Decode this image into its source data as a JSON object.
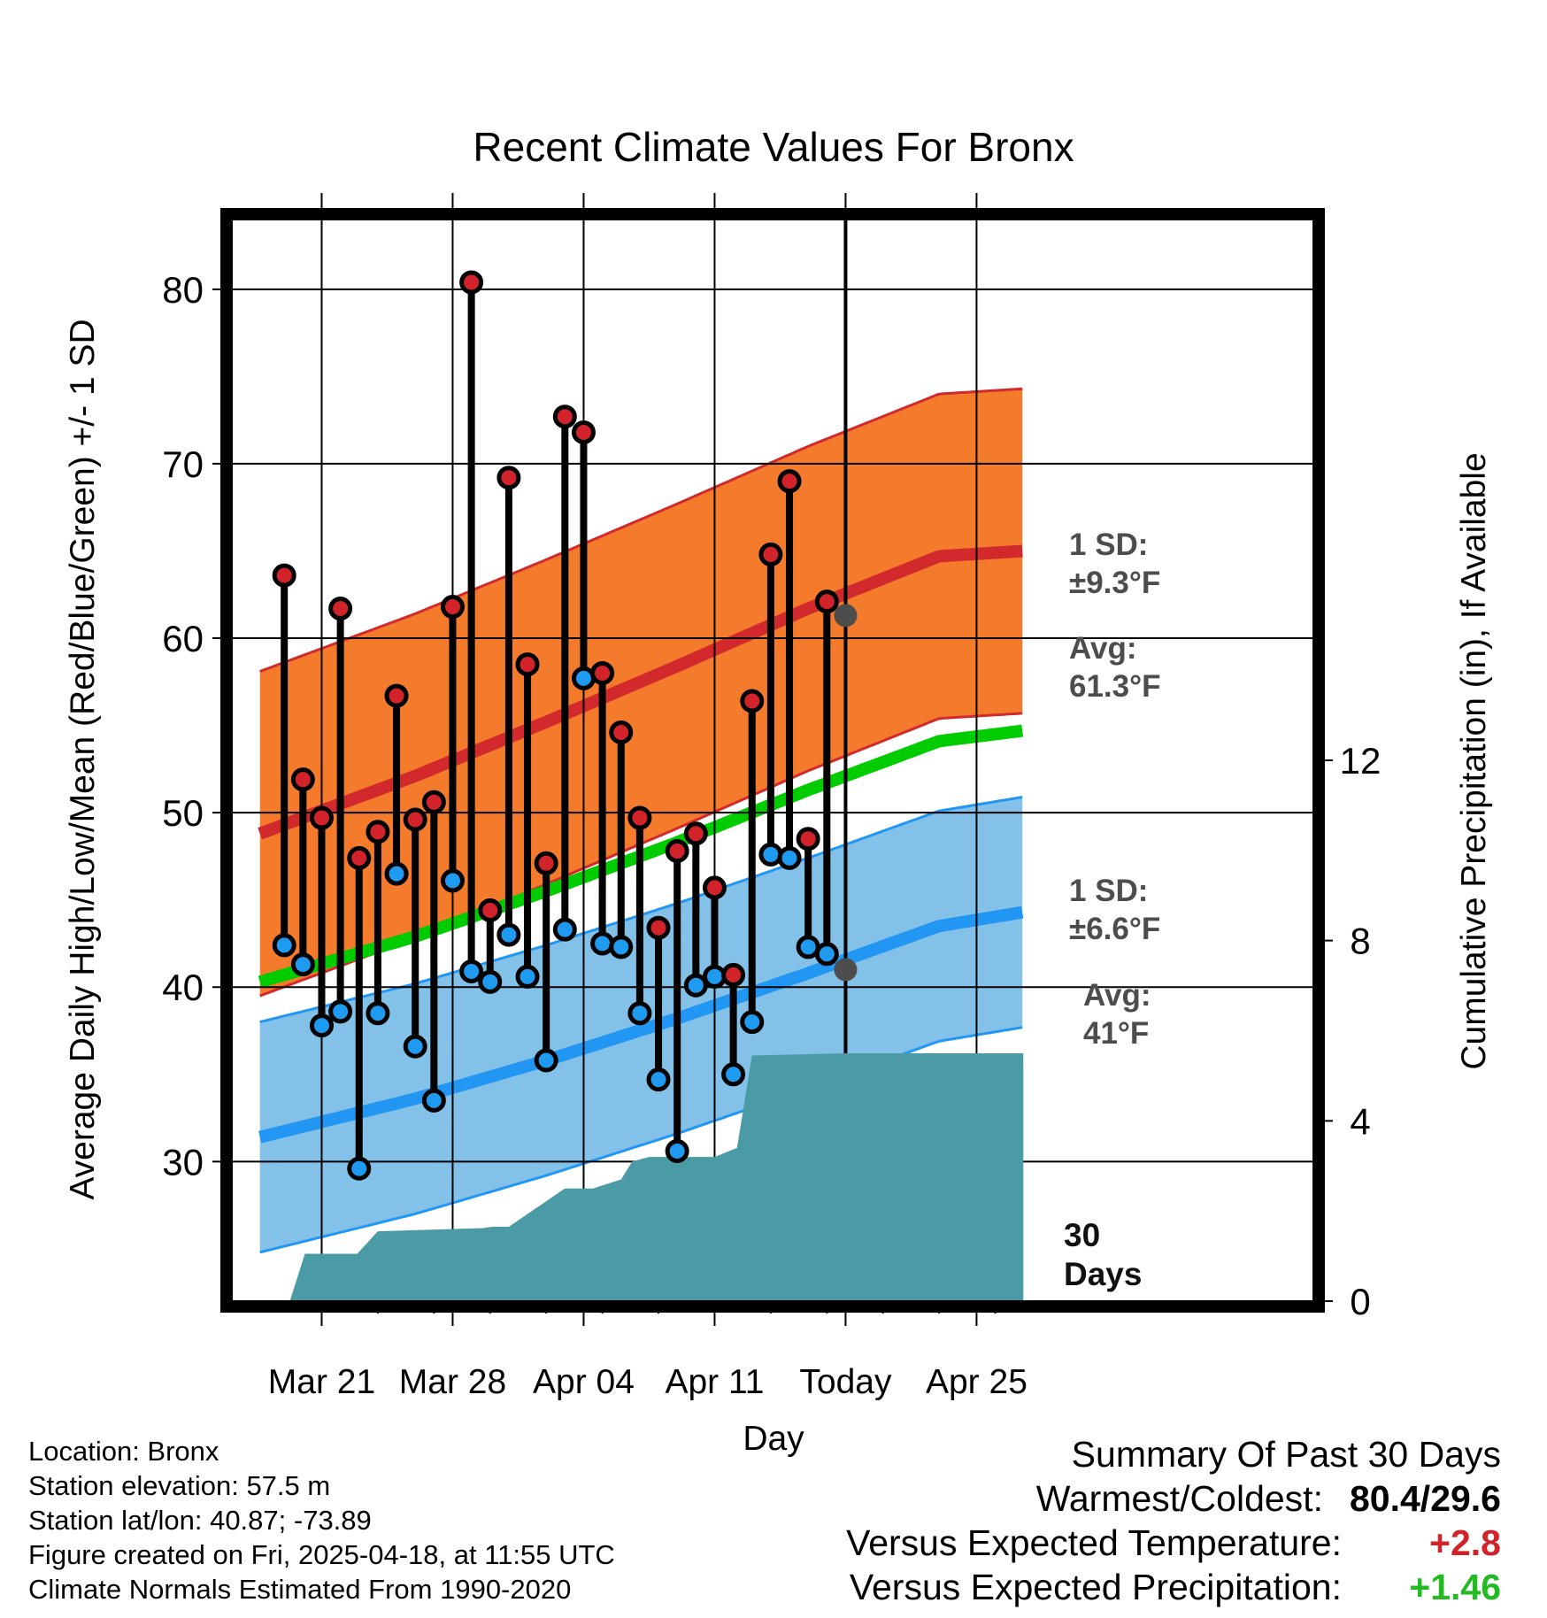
{
  "chart_data": {
    "type": "line",
    "title": "Recent Climate Values For Bronx",
    "xlabel": "Day",
    "ylabel": "Average Daily High/Low/Mean (Red/Blue/Green) +/- 1 SD",
    "y2label": "Cumulative Precipitation (in), If Available",
    "ylim": [
      22,
      84
    ],
    "y2lim": [
      0,
      24
    ],
    "xlim": [
      -4.8,
      53
    ],
    "x_ticks": [
      {
        "x": 0,
        "label": "Mar 21"
      },
      {
        "x": 7,
        "label": "Mar 28"
      },
      {
        "x": 14,
        "label": "Apr 04"
      },
      {
        "x": 21,
        "label": "Apr 11"
      },
      {
        "x": 28,
        "label": "Today"
      },
      {
        "x": 35,
        "label": "Apr 25"
      }
    ],
    "y_ticks": [
      30,
      40,
      50,
      60,
      70,
      80
    ],
    "y2_ticks": [
      0,
      4,
      8,
      12
    ],
    "today_x": 28,
    "days_label": "30 Days",
    "daily": {
      "x": [
        -2,
        -1,
        0,
        1,
        2,
        3,
        4,
        5,
        6,
        7,
        8,
        9,
        10,
        11,
        12,
        13,
        14,
        15,
        16,
        17,
        18,
        19,
        20,
        21,
        22,
        23,
        24,
        25,
        26,
        27
      ],
      "high": [
        63.6,
        51.9,
        49.7,
        61.7,
        47.4,
        48.9,
        56.7,
        49.6,
        50.6,
        61.8,
        80.4,
        44.4,
        69.2,
        58.5,
        47.1,
        72.7,
        71.8,
        58.0,
        54.6,
        49.7,
        43.4,
        47.8,
        48.8,
        45.7,
        40.7,
        56.4,
        64.8,
        69.0,
        48.5,
        62.1
      ],
      "low": [
        42.4,
        41.3,
        37.8,
        38.6,
        29.6,
        38.5,
        46.5,
        36.6,
        33.5,
        46.1,
        40.9,
        40.3,
        43.0,
        40.6,
        35.8,
        43.3,
        57.7,
        42.5,
        42.3,
        38.5,
        34.7,
        30.6,
        40.1,
        40.6,
        35.0,
        38.0,
        47.6,
        47.4,
        42.3,
        41.9
      ]
    },
    "normals": {
      "x": [
        -3.3,
        5,
        12,
        19,
        26,
        33,
        37.5
      ],
      "high": [
        48.8,
        52.1,
        55.2,
        58.4,
        61.7,
        64.7,
        65.0
      ],
      "low": [
        31.4,
        33.6,
        35.8,
        38.2,
        40.8,
        43.5,
        44.3
      ],
      "mean": [
        40.3,
        42.9,
        45.5,
        48.3,
        51.3,
        54.1,
        54.7
      ]
    },
    "high_sd": 9.3,
    "low_sd": 6.6,
    "precip": {
      "x": [
        -1.7,
        -0.9,
        1.9,
        3.0,
        8.6,
        9.1,
        10.0,
        13.0,
        14.5,
        16.0,
        16.6,
        17.5,
        20.0,
        21.0,
        22.2,
        23.0,
        28.0,
        37.5
      ],
      "values": [
        0.0,
        1.05,
        1.05,
        1.55,
        1.62,
        1.65,
        1.65,
        2.5,
        2.5,
        2.7,
        3.1,
        3.2,
        3.2,
        3.2,
        3.4,
        5.45,
        5.5,
        5.5
      ]
    },
    "annotations": {
      "high_sd_line1": "1 SD:",
      "high_sd_line2": "±9.3°F",
      "high_avg_line1": "Avg:",
      "high_avg_line2": "61.3°F",
      "high_avg_value": 61.3,
      "low_sd_line1": "1 SD:",
      "low_sd_line2": "±6.6°F",
      "low_avg_line1": "Avg:",
      "low_avg_line2": "41°F",
      "low_avg_value": 41.0
    },
    "colors": {
      "high_band": "#f47a2c",
      "high_line": "#d2292c",
      "low_band": "#84c1e8",
      "low_line": "#2196f3",
      "mean_line": "#00cc00",
      "precip": "#4a9ba5",
      "high_marker": "#d2232a",
      "low_marker": "#1e9af0",
      "annotation": "#4d4d4d"
    }
  },
  "info": {
    "location": "Location: Bronx",
    "elevation": "Station elevation: 57.5 m",
    "latlon": "Station lat/lon: 40.87; -73.89",
    "created": "Figure created on Fri, 2025-04-18, at 11:55 UTC",
    "normals": "Climate Normals Estimated From 1990-2020"
  },
  "summary": {
    "title": "Summary Of Past 30 Days",
    "warmest_label": "Warmest/Coldest:",
    "warmest_value": "80.4",
    "coldest_value": "29.6",
    "temp_label": "Versus Expected Temperature:",
    "temp_value": "+2.8",
    "temp_color": "#d2232a",
    "precip_label": "Versus Expected Precipitation:",
    "precip_value": "+1.46",
    "precip_color": "#22bb22"
  }
}
